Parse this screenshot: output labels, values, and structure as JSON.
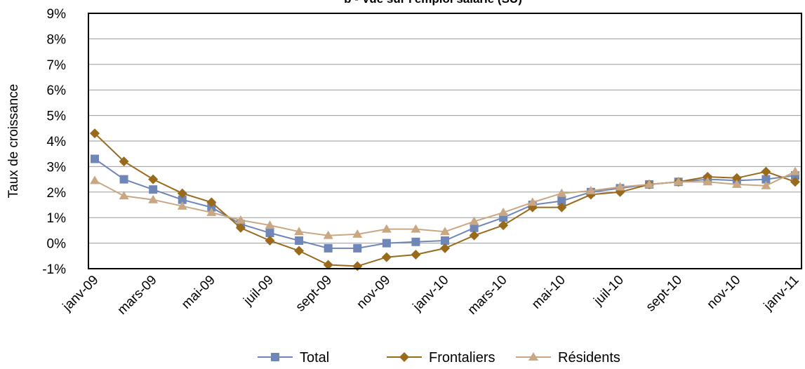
{
  "chart_data": {
    "type": "line",
    "title": "b - Vue sur l'emploi salarié (SU)",
    "ylabel": "Taux de croissance",
    "xlabel": "",
    "ylim": [
      -1,
      9
    ],
    "y_ticks": [
      "-1%",
      "0%",
      "1%",
      "2%",
      "3%",
      "4%",
      "5%",
      "6%",
      "7%",
      "8%",
      "9%"
    ],
    "grid": true,
    "legend_position": "bottom",
    "x_tick_labels": [
      "janv-09",
      "mars-09",
      "mai-09",
      "juil-09",
      "sept-09",
      "nov-09",
      "janv-10",
      "mars-10",
      "mai-10",
      "juil-10",
      "sept-10",
      "nov-10",
      "janv-11"
    ],
    "x": [
      "janv-09",
      "févr-09",
      "mars-09",
      "avr-09",
      "mai-09",
      "juin-09",
      "juil-09",
      "août-09",
      "sept-09",
      "oct-09",
      "nov-09",
      "déc-09",
      "janv-10",
      "févr-10",
      "mars-10",
      "avr-10",
      "mai-10",
      "juin-10",
      "juil-10",
      "août-10",
      "sept-10",
      "oct-10",
      "nov-10",
      "déc-10",
      "janv-11"
    ],
    "series": [
      {
        "name": "Total",
        "color": "#6f86b8",
        "marker": "square",
        "values": [
          3.3,
          2.5,
          2.1,
          1.7,
          1.4,
          0.75,
          0.4,
          0.1,
          -0.2,
          -0.2,
          0.0,
          0.05,
          0.1,
          0.6,
          1.0,
          1.5,
          1.65,
          2.0,
          2.15,
          2.3,
          2.4,
          2.5,
          2.45,
          2.5,
          2.65
        ]
      },
      {
        "name": "Frontaliers",
        "color": "#996a1c",
        "marker": "diamond",
        "values": [
          4.3,
          3.2,
          2.5,
          1.95,
          1.6,
          0.6,
          0.1,
          -0.3,
          -0.85,
          -0.9,
          -0.55,
          -0.45,
          -0.2,
          0.3,
          0.7,
          1.4,
          1.4,
          1.9,
          2.0,
          2.3,
          2.4,
          2.6,
          2.55,
          2.8,
          2.4
        ]
      },
      {
        "name": "Résidents",
        "color": "#c9a783",
        "marker": "triangle",
        "values": [
          2.45,
          1.85,
          1.7,
          1.45,
          1.2,
          0.9,
          0.7,
          0.45,
          0.3,
          0.35,
          0.55,
          0.55,
          0.45,
          0.85,
          1.2,
          1.6,
          1.95,
          2.05,
          2.2,
          2.3,
          2.4,
          2.4,
          2.3,
          2.25,
          2.8
        ]
      }
    ]
  }
}
